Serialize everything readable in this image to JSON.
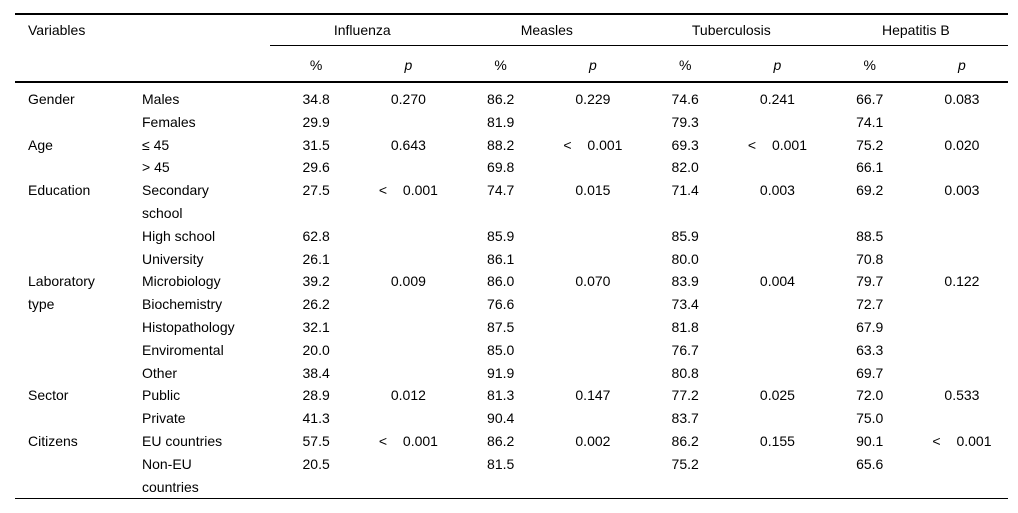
{
  "table": {
    "header": {
      "variables_label": "Variables",
      "diseases": [
        "Influenza",
        "Measles",
        "Tuberculosis",
        "Hepatitis B"
      ],
      "percent_label": "%",
      "p_label": "p"
    },
    "groups": [
      {
        "label": "Gender",
        "rows": [
          {
            "category": "Males",
            "cells": [
              "34.8",
              "0.270",
              "86.2",
              "0.229",
              "74.6",
              "0.241",
              "66.7",
              "0.083"
            ]
          },
          {
            "category": "Females",
            "cells": [
              "29.9",
              "",
              "81.9",
              "",
              "79.3",
              "",
              "74.1",
              ""
            ]
          }
        ]
      },
      {
        "label": "Age",
        "rows": [
          {
            "category": "≤ 45",
            "cells": [
              "31.5",
              "0.643",
              "88.2",
              "< 0.001",
              "69.3",
              "< 0.001",
              "75.2",
              "0.020"
            ]
          },
          {
            "category": "> 45",
            "cells": [
              "29.6",
              "",
              "69.8",
              "",
              "82.0",
              "",
              "66.1",
              ""
            ]
          }
        ]
      },
      {
        "label": "Education",
        "rows": [
          {
            "category": "Secondary school",
            "cells": [
              "27.5",
              "< 0.001",
              "74.7",
              "0.015",
              "71.4",
              "0.003",
              "69.2",
              "0.003"
            ]
          },
          {
            "category": "High school",
            "cells": [
              "62.8",
              "",
              "85.9",
              "",
              "85.9",
              "",
              "88.5",
              ""
            ]
          },
          {
            "category": "University",
            "cells": [
              "26.1",
              "",
              "86.1",
              "",
              "80.0",
              "",
              "70.8",
              ""
            ]
          }
        ]
      },
      {
        "label": "Laboratory type",
        "rows": [
          {
            "category": "Microbiology",
            "cells": [
              "39.2",
              "0.009",
              "86.0",
              "0.070",
              "83.9",
              "0.004",
              "79.7",
              "0.122"
            ]
          },
          {
            "category": "Biochemistry",
            "cells": [
              "26.2",
              "",
              "76.6",
              "",
              "73.4",
              "",
              "72.7",
              ""
            ]
          },
          {
            "category": "Histopathology",
            "cells": [
              "32.1",
              "",
              "87.5",
              "",
              "81.8",
              "",
              "67.9",
              ""
            ]
          },
          {
            "category": "Enviromental",
            "cells": [
              "20.0",
              "",
              "85.0",
              "",
              "76.7",
              "",
              "63.3",
              ""
            ]
          },
          {
            "category": "Other",
            "cells": [
              "38.4",
              "",
              "91.9",
              "",
              "80.8",
              "",
              "69.7",
              ""
            ]
          }
        ]
      },
      {
        "label": "Sector",
        "rows": [
          {
            "category": "Public",
            "cells": [
              "28.9",
              "0.012",
              "81.3",
              "0.147",
              "77.2",
              "0.025",
              "72.0",
              "0.533"
            ]
          },
          {
            "category": "Private",
            "cells": [
              "41.3",
              "",
              "90.4",
              "",
              "83.7",
              "",
              "75.0",
              ""
            ]
          }
        ]
      },
      {
        "label": "Citizens",
        "rows": [
          {
            "category": "EU countries",
            "cells": [
              "57.5",
              "< 0.001",
              "86.2",
              "0.002",
              "86.2",
              "0.155",
              "90.1",
              "< 0.001"
            ]
          },
          {
            "category": "Non-EU countries",
            "cells": [
              "20.5",
              "",
              "81.5",
              "",
              "75.2",
              "",
              "65.6",
              ""
            ]
          }
        ]
      }
    ]
  }
}
